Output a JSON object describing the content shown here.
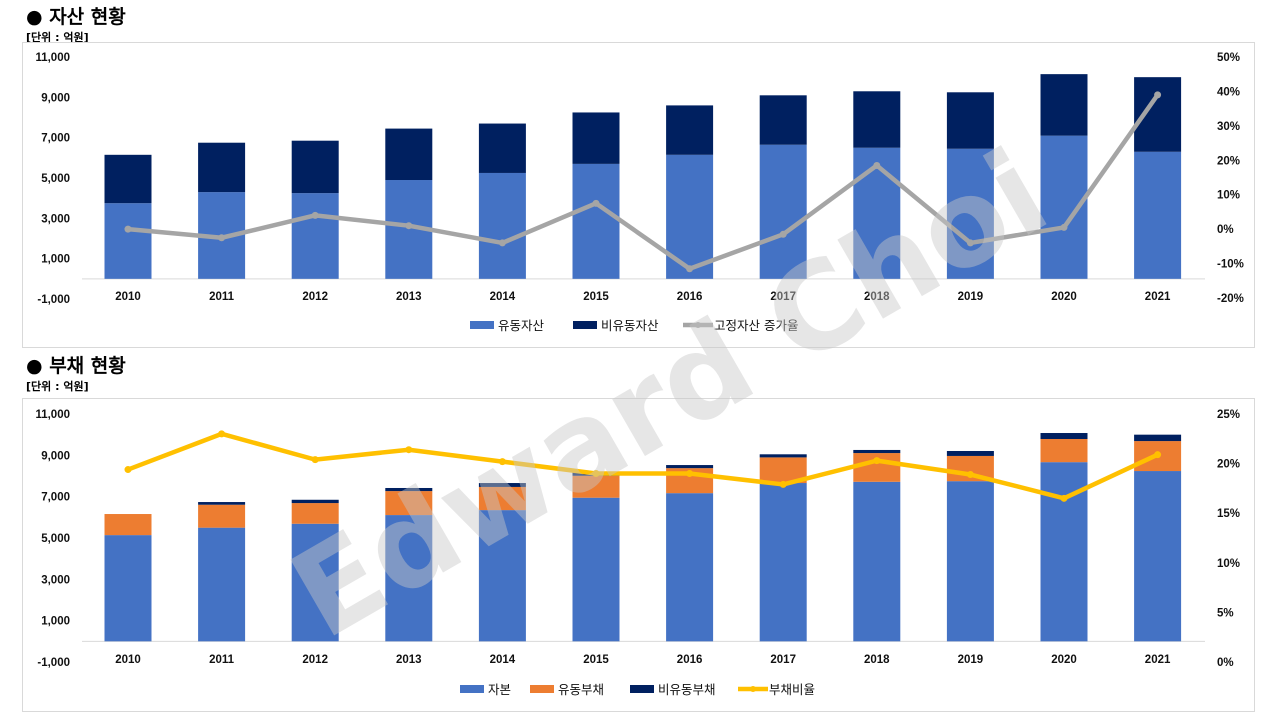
{
  "watermark": "Edward Choi",
  "colors": {
    "blue": "#4472c4",
    "navy": "#002060",
    "orange": "#ed7d31",
    "gray": "#a5a5a5",
    "yellow": "#ffc000"
  },
  "chart_data": [
    {
      "type": "bar",
      "stacked": true,
      "title": "●  자산 현황",
      "unit": "[단위 : 억원]",
      "categories": [
        "2010",
        "2011",
        "2012",
        "2013",
        "2014",
        "2015",
        "2016",
        "2017",
        "2018",
        "2019",
        "2020",
        "2021"
      ],
      "series": [
        {
          "name": "유동자산",
          "kind": "bar",
          "axis": "left",
          "color": "#4472c4",
          "values": [
            3750,
            4300,
            4250,
            4900,
            5250,
            5700,
            6150,
            6650,
            6500,
            6450,
            7100,
            6300
          ]
        },
        {
          "name": "비유동자산",
          "kind": "bar",
          "axis": "left",
          "color": "#002060",
          "values": [
            2400,
            2450,
            2600,
            2550,
            2450,
            2550,
            2450,
            2450,
            2800,
            2800,
            3050,
            3700
          ]
        },
        {
          "name": "고정자산 증가율",
          "kind": "line",
          "axis": "right",
          "color": "#a5a5a5",
          "values": [
            0.0,
            -2.5,
            4.0,
            1.0,
            -4.0,
            7.5,
            -11.5,
            -1.5,
            18.5,
            -4.0,
            0.5,
            39.0
          ]
        }
      ],
      "y_left": {
        "range": [
          -1000,
          11000
        ],
        "ticks": [
          "-1,000",
          "1,000",
          "3,000",
          "5,000",
          "7,000",
          "9,000",
          "11,000"
        ]
      },
      "y_right": {
        "range": [
          -20,
          50
        ],
        "ticks": [
          "-20%",
          "-10%",
          "0%",
          "10%",
          "20%",
          "30%",
          "40%",
          "50%"
        ]
      },
      "legend": "bottom",
      "grid": false
    },
    {
      "type": "bar",
      "stacked": true,
      "title": "●  부채 현황",
      "unit": "[단위 : 억원]",
      "categories": [
        "2010",
        "2011",
        "2012",
        "2013",
        "2014",
        "2015",
        "2016",
        "2017",
        "2018",
        "2019",
        "2020",
        "2021"
      ],
      "series": [
        {
          "name": "자본",
          "kind": "bar",
          "axis": "left",
          "color": "#4472c4",
          "values": [
            5140,
            5500,
            5690,
            6110,
            6350,
            6950,
            7170,
            7660,
            7720,
            7750,
            8670,
            8240
          ]
        },
        {
          "name": "유동부채",
          "kind": "bar",
          "axis": "left",
          "color": "#ed7d31",
          "values": [
            1020,
            1110,
            1000,
            1160,
            1120,
            1060,
            1210,
            1240,
            1390,
            1220,
            1120,
            1450
          ]
        },
        {
          "name": "비유동부채",
          "kind": "bar",
          "axis": "left",
          "color": "#002060",
          "values": [
            0,
            130,
            160,
            150,
            190,
            200,
            150,
            150,
            150,
            240,
            290,
            310
          ]
        },
        {
          "name": "부채비율",
          "kind": "line",
          "axis": "right",
          "color": "#ffc000",
          "values": [
            19.4,
            23.0,
            20.4,
            21.4,
            20.2,
            19.0,
            19.0,
            17.9,
            20.3,
            18.9,
            16.5,
            20.9
          ]
        }
      ],
      "y_left": {
        "range": [
          -1000,
          11000
        ],
        "ticks": [
          "-1,000",
          "1,000",
          "3,000",
          "5,000",
          "7,000",
          "9,000",
          "11,000"
        ]
      },
      "y_right": {
        "range": [
          0,
          25
        ],
        "ticks": [
          "0%",
          "5%",
          "10%",
          "15%",
          "20%",
          "25%"
        ]
      },
      "legend": "bottom",
      "grid": false
    }
  ]
}
